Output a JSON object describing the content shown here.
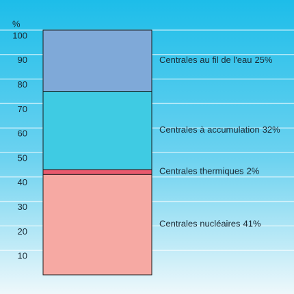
{
  "chart_data": {
    "type": "stacked_bar",
    "y_axis_label": "%",
    "categories": [
      null
    ],
    "series": [
      {
        "name": "Centrales nucléaires",
        "color": "#f6a9a3",
        "values": [
          41
        ],
        "value_labels": [
          "41%"
        ]
      },
      {
        "name": "Centrales thermiques",
        "color": "#e9596d",
        "values": [
          2
        ],
        "value_labels": [
          "2%"
        ]
      },
      {
        "name": "Centrales à accumulation",
        "color": "#3fcbe3",
        "values": [
          32
        ],
        "value_labels": [
          "32%"
        ]
      },
      {
        "name": "Centrales au fil de l'eau",
        "color": "#7fa9d8",
        "values": [
          25
        ],
        "value_labels": [
          "25%"
        ]
      }
    ],
    "ylim": [
      0,
      100
    ],
    "yticks": [
      10,
      20,
      30,
      40,
      50,
      60,
      70,
      80,
      90,
      100
    ],
    "grid": true
  }
}
